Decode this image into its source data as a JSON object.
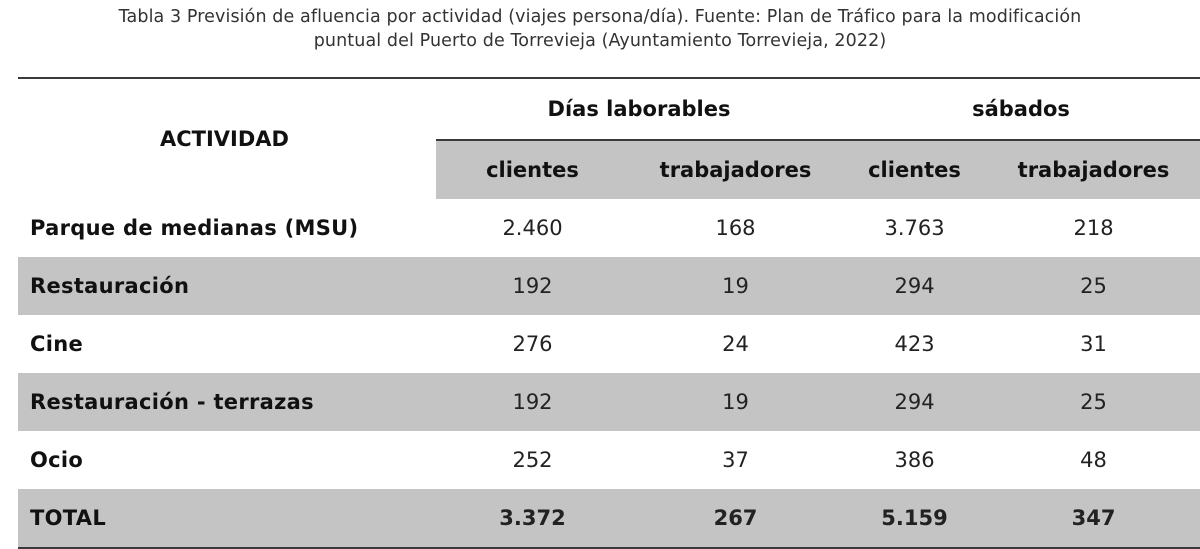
{
  "caption": {
    "line1": "Tabla 3 Previsión de afluencia por actividad (viajes persona/día). Fuente: Plan de Tráfico para la modificación",
    "line2": "puntual del Puerto de Torrevieja (Ayuntamiento Torrevieja, 2022)"
  },
  "table": {
    "activity_header": "ACTIVIDAD",
    "group_headers": [
      "Días laborables",
      "sábados"
    ],
    "sub_headers": [
      "clientes",
      "trabajadores",
      "clientes",
      "trabajadores"
    ],
    "rows": [
      {
        "label": "Parque de medianas (MSU)",
        "values": [
          "2.460",
          "168",
          "3.763",
          "218"
        ]
      },
      {
        "label": "Restauración",
        "values": [
          "192",
          "19",
          "294",
          "25"
        ]
      },
      {
        "label": "Cine",
        "values": [
          "276",
          "24",
          "423",
          "31"
        ]
      },
      {
        "label": "Restauración - terrazas",
        "values": [
          "192",
          "19",
          "294",
          "25"
        ]
      },
      {
        "label": "Ocio",
        "values": [
          "252",
          "37",
          "386",
          "48"
        ]
      },
      {
        "label": "TOTAL",
        "values": [
          "3.372",
          "267",
          "5.159",
          "347"
        ]
      }
    ]
  },
  "colors": {
    "shade": "#c4c4c4",
    "rule": "#3a3a3a",
    "text": "#111111"
  }
}
